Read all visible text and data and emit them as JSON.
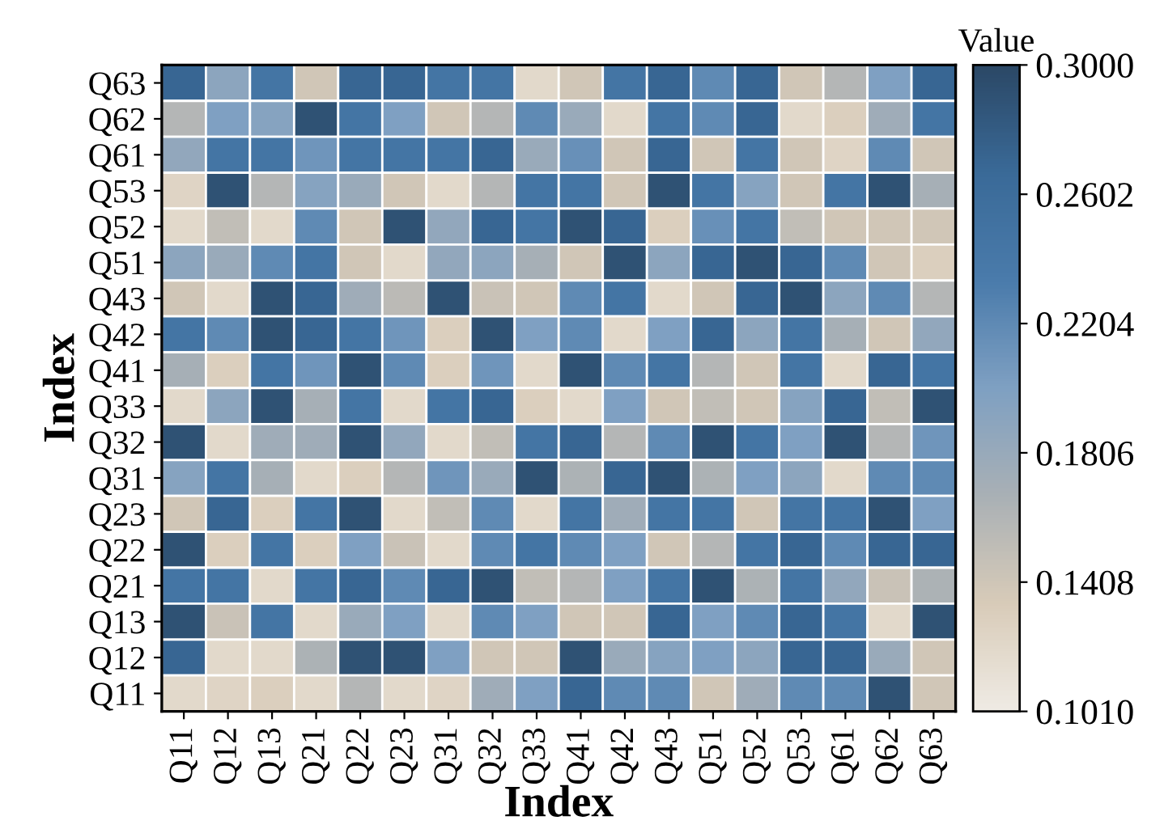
{
  "chart_data": {
    "type": "heatmap",
    "xlabel": "Index",
    "ylabel": "Index",
    "clabel": "Value",
    "categories": [
      "Q11",
      "Q12",
      "Q13",
      "Q21",
      "Q22",
      "Q23",
      "Q31",
      "Q32",
      "Q33",
      "Q41",
      "Q42",
      "Q43",
      "Q51",
      "Q52",
      "Q53",
      "Q61",
      "Q62",
      "Q63"
    ],
    "y_categories": [
      "Q63",
      "Q62",
      "Q61",
      "Q53",
      "Q52",
      "Q51",
      "Q43",
      "Q42",
      "Q41",
      "Q33",
      "Q32",
      "Q31",
      "Q23",
      "Q22",
      "Q21",
      "Q13",
      "Q12",
      "Q11"
    ],
    "clim": [
      0.101,
      0.3
    ],
    "cticks": [
      {
        "value": 0.101,
        "label": "0.1010"
      },
      0.1408,
      0.1806,
      0.2204,
      0.2602,
      {
        "value": 0.3,
        "label": "0.3000"
      }
    ],
    "cells": [
      [
        0.27,
        0.19,
        0.245,
        0.14,
        0.27,
        0.27,
        0.245,
        0.245,
        0.12,
        0.14,
        0.245,
        0.27,
        0.22,
        0.27,
        0.14,
        0.16,
        0.2,
        0.27
      ],
      [
        0.16,
        0.2,
        0.195,
        0.29,
        0.245,
        0.2,
        0.14,
        0.16,
        0.22,
        0.18,
        0.12,
        0.245,
        0.22,
        0.27,
        0.12,
        0.13,
        0.175,
        0.245
      ],
      [
        0.185,
        0.245,
        0.245,
        0.21,
        0.245,
        0.245,
        0.245,
        0.27,
        0.18,
        0.215,
        0.14,
        0.27,
        0.14,
        0.245,
        0.14,
        0.125,
        0.22,
        0.14
      ],
      [
        0.125,
        0.29,
        0.16,
        0.195,
        0.18,
        0.14,
        0.12,
        0.16,
        0.245,
        0.245,
        0.14,
        0.29,
        0.245,
        0.195,
        0.14,
        0.245,
        0.29,
        0.17
      ],
      [
        0.12,
        0.15,
        0.12,
        0.22,
        0.14,
        0.29,
        0.185,
        0.27,
        0.245,
        0.29,
        0.27,
        0.13,
        0.215,
        0.245,
        0.15,
        0.14,
        0.14,
        0.14
      ],
      [
        0.19,
        0.18,
        0.22,
        0.245,
        0.14,
        0.12,
        0.185,
        0.19,
        0.17,
        0.14,
        0.29,
        0.19,
        0.27,
        0.29,
        0.27,
        0.22,
        0.14,
        0.13
      ],
      [
        0.14,
        0.12,
        0.29,
        0.27,
        0.175,
        0.155,
        0.29,
        0.145,
        0.14,
        0.22,
        0.245,
        0.12,
        0.14,
        0.27,
        0.29,
        0.19,
        0.22,
        0.16
      ],
      [
        0.245,
        0.22,
        0.29,
        0.27,
        0.245,
        0.21,
        0.13,
        0.29,
        0.2,
        0.22,
        0.12,
        0.2,
        0.27,
        0.19,
        0.245,
        0.17,
        0.14,
        0.185
      ],
      [
        0.17,
        0.13,
        0.245,
        0.21,
        0.29,
        0.22,
        0.13,
        0.21,
        0.12,
        0.29,
        0.22,
        0.245,
        0.16,
        0.14,
        0.245,
        0.12,
        0.27,
        0.245
      ],
      [
        0.12,
        0.19,
        0.29,
        0.17,
        0.245,
        0.12,
        0.245,
        0.27,
        0.13,
        0.12,
        0.2,
        0.14,
        0.15,
        0.14,
        0.195,
        0.27,
        0.15,
        0.29
      ],
      [
        0.29,
        0.12,
        0.175,
        0.175,
        0.29,
        0.185,
        0.12,
        0.15,
        0.245,
        0.27,
        0.16,
        0.22,
        0.29,
        0.245,
        0.2,
        0.29,
        0.16,
        0.21
      ],
      [
        0.195,
        0.245,
        0.17,
        0.12,
        0.13,
        0.16,
        0.21,
        0.18,
        0.29,
        0.165,
        0.27,
        0.29,
        0.165,
        0.2,
        0.19,
        0.12,
        0.22,
        0.22
      ],
      [
        0.14,
        0.27,
        0.13,
        0.245,
        0.29,
        0.12,
        0.15,
        0.22,
        0.12,
        0.245,
        0.175,
        0.245,
        0.245,
        0.14,
        0.245,
        0.245,
        0.29,
        0.2
      ],
      [
        0.29,
        0.13,
        0.245,
        0.13,
        0.2,
        0.145,
        0.12,
        0.22,
        0.245,
        0.22,
        0.2,
        0.14,
        0.16,
        0.245,
        0.27,
        0.22,
        0.27,
        0.27
      ],
      [
        0.245,
        0.245,
        0.12,
        0.245,
        0.27,
        0.22,
        0.27,
        0.29,
        0.15,
        0.16,
        0.2,
        0.245,
        0.29,
        0.165,
        0.245,
        0.185,
        0.145,
        0.165
      ],
      [
        0.29,
        0.145,
        0.245,
        0.12,
        0.18,
        0.2,
        0.12,
        0.22,
        0.2,
        0.14,
        0.14,
        0.27,
        0.2,
        0.22,
        0.27,
        0.245,
        0.12,
        0.29
      ],
      [
        0.27,
        0.12,
        0.12,
        0.165,
        0.29,
        0.29,
        0.2,
        0.14,
        0.14,
        0.29,
        0.18,
        0.195,
        0.2,
        0.19,
        0.27,
        0.27,
        0.18,
        0.14
      ],
      [
        0.12,
        0.125,
        0.13,
        0.12,
        0.16,
        0.12,
        0.125,
        0.175,
        0.2,
        0.27,
        0.22,
        0.22,
        0.14,
        0.175,
        0.22,
        0.22,
        0.29,
        0.14
      ]
    ]
  }
}
